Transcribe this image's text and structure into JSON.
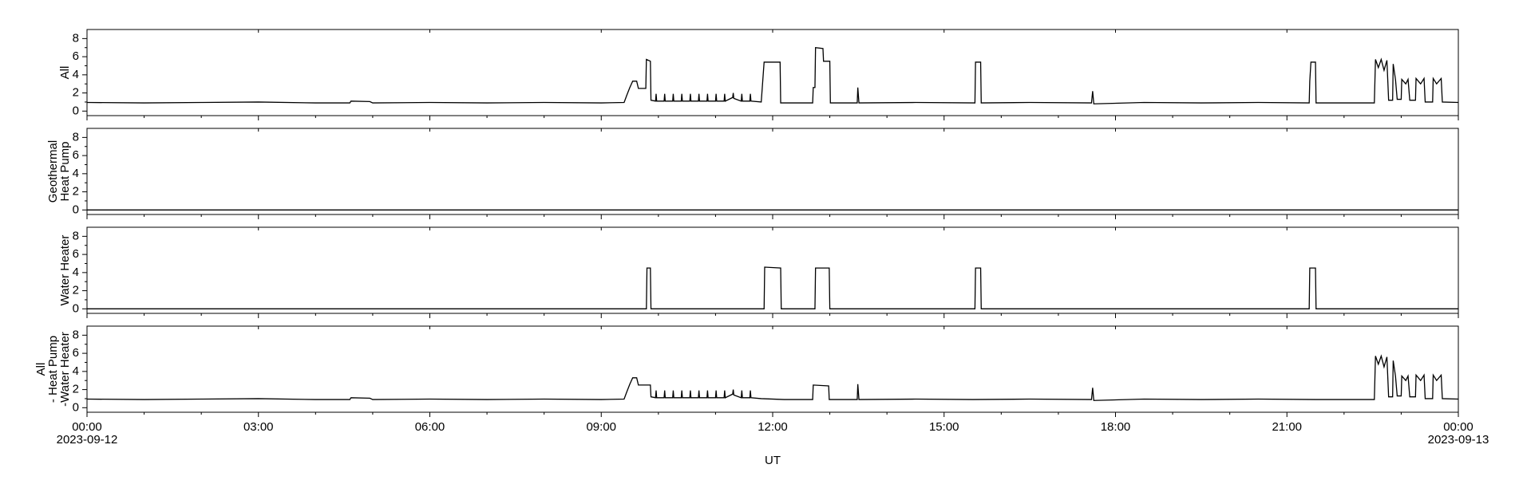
{
  "chart_data": [
    {
      "type": "line",
      "ylabel": [
        "All"
      ],
      "color": "#000000",
      "ylim": [
        -0.5,
        9
      ],
      "yticks": [
        0,
        2,
        4,
        6,
        8
      ],
      "yticks_minor": [
        1,
        3,
        5,
        7
      ],
      "x": [
        0,
        1.0,
        2.0,
        3.0,
        4.0,
        4.6,
        4.62,
        4.95,
        5.0,
        6.0,
        7.0,
        8.0,
        9.0,
        9.4,
        9.45,
        9.5,
        9.55,
        9.62,
        9.65,
        9.78,
        9.79,
        9.86,
        9.87,
        9.95,
        9.96,
        9.97,
        10.1,
        10.11,
        10.12,
        10.25,
        10.26,
        10.27,
        10.4,
        10.41,
        10.42,
        10.55,
        10.56,
        10.57,
        10.7,
        10.71,
        10.72,
        10.85,
        10.86,
        10.87,
        11.0,
        11.01,
        11.02,
        11.15,
        11.16,
        11.17,
        11.3,
        11.31,
        11.32,
        11.45,
        11.46,
        11.47,
        11.6,
        11.61,
        11.62,
        11.8,
        11.85,
        12.13,
        12.14,
        12.7,
        12.71,
        12.74,
        12.75,
        12.88,
        12.89,
        13.0,
        13.01,
        13.48,
        13.49,
        13.51,
        14.5,
        15.54,
        15.55,
        15.64,
        15.65,
        16.5,
        17.58,
        17.6,
        17.62,
        18.5,
        19.5,
        20.5,
        21.39,
        21.4,
        21.42,
        21.5,
        21.51,
        22.53,
        22.55,
        22.6,
        22.65,
        22.7,
        22.75,
        22.78,
        22.85,
        22.86,
        22.9,
        22.93,
        23.0,
        23.01,
        23.08,
        23.12,
        23.15,
        23.25,
        23.26,
        23.34,
        23.4,
        23.42,
        23.55,
        23.56,
        23.62,
        23.7,
        23.72,
        24.0
      ],
      "values": [
        0.95,
        0.9,
        0.95,
        1.0,
        0.9,
        0.9,
        1.1,
        1.05,
        0.9,
        0.95,
        0.9,
        0.95,
        0.9,
        0.95,
        1.8,
        2.6,
        3.3,
        3.3,
        2.5,
        2.5,
        5.7,
        5.5,
        1.2,
        1.1,
        1.9,
        1.1,
        1.1,
        1.9,
        1.1,
        1.1,
        1.9,
        1.1,
        1.1,
        1.9,
        1.1,
        1.1,
        1.9,
        1.1,
        1.1,
        1.9,
        1.1,
        1.1,
        1.9,
        1.1,
        1.1,
        1.9,
        1.1,
        1.1,
        1.9,
        1.1,
        1.5,
        2.0,
        1.4,
        1.1,
        1.9,
        1.1,
        1.1,
        1.9,
        1.1,
        1.0,
        5.4,
        5.4,
        0.9,
        0.9,
        2.6,
        2.6,
        7.0,
        6.9,
        5.5,
        5.5,
        0.9,
        0.9,
        2.6,
        0.9,
        0.95,
        0.9,
        5.4,
        5.4,
        0.9,
        0.95,
        0.9,
        2.2,
        0.8,
        0.95,
        0.9,
        0.95,
        0.9,
        3.3,
        5.4,
        5.4,
        0.9,
        0.9,
        5.7,
        4.8,
        5.7,
        4.5,
        5.6,
        1.2,
        1.2,
        5.2,
        3.5,
        1.3,
        1.3,
        3.5,
        3.0,
        3.5,
        1.2,
        1.2,
        3.6,
        3.0,
        3.6,
        1.0,
        1.0,
        3.6,
        3.0,
        3.6,
        1.0,
        0.95
      ]
    },
    {
      "type": "line",
      "ylabel": [
        "Geothermal",
        "Heat Pump"
      ],
      "color": "#000000",
      "ylim": [
        -0.5,
        9
      ],
      "yticks": [
        0,
        2,
        4,
        6,
        8
      ],
      "yticks_minor": [
        1,
        3,
        5,
        7
      ],
      "x": [
        0,
        24
      ],
      "values": [
        0,
        0
      ]
    },
    {
      "type": "line",
      "ylabel": [
        "Water Heater"
      ],
      "color": "#000000",
      "ylim": [
        -0.5,
        9
      ],
      "yticks": [
        0,
        2,
        4,
        6,
        8
      ],
      "yticks_minor": [
        1,
        3,
        5,
        7
      ],
      "x": [
        0,
        9.79,
        9.8,
        9.86,
        9.87,
        11.85,
        11.86,
        12.14,
        12.15,
        12.74,
        12.75,
        12.99,
        13.0,
        15.54,
        15.55,
        15.64,
        15.65,
        21.39,
        21.4,
        21.5,
        21.51,
        24
      ],
      "values": [
        0,
        0,
        4.5,
        4.5,
        0,
        0,
        4.6,
        4.5,
        0,
        0,
        4.5,
        4.5,
        0,
        0,
        4.5,
        4.5,
        0,
        0,
        4.5,
        4.5,
        0,
        0
      ]
    },
    {
      "type": "line",
      "ylabel": [
        "All",
        "- Heat Pump",
        "-Water Heater"
      ],
      "color": "#000000",
      "ylim": [
        -0.5,
        9
      ],
      "yticks": [
        0,
        2,
        4,
        6,
        8
      ],
      "yticks_minor": [
        1,
        3,
        5,
        7
      ],
      "xlim": [
        0,
        24
      ],
      "xticks": [
        {
          "value": 0,
          "label": "00:00"
        },
        {
          "value": 3,
          "label": "03:00"
        },
        {
          "value": 6,
          "label": "06:00"
        },
        {
          "value": 9,
          "label": "09:00"
        },
        {
          "value": 12,
          "label": "12:00"
        },
        {
          "value": 15,
          "label": "15:00"
        },
        {
          "value": 18,
          "label": "18:00"
        },
        {
          "value": 21,
          "label": "21:00"
        },
        {
          "value": 24,
          "label": "00:00"
        }
      ],
      "xticks_minor": [
        1,
        2,
        4,
        5,
        7,
        8,
        10,
        11,
        13,
        14,
        16,
        17,
        19,
        20,
        22,
        23
      ],
      "xtick_dates": [
        {
          "value": 0,
          "label": "2023-09-12"
        },
        {
          "value": 24,
          "label": "2023-09-13"
        }
      ],
      "xlabel": "UT",
      "x": [
        0,
        1.0,
        2.0,
        3.0,
        4.0,
        4.6,
        4.62,
        4.95,
        5.0,
        6.0,
        7.0,
        8.0,
        9.0,
        9.4,
        9.45,
        9.5,
        9.55,
        9.62,
        9.65,
        9.86,
        9.87,
        9.95,
        9.96,
        9.97,
        10.1,
        10.11,
        10.12,
        10.25,
        10.26,
        10.27,
        10.4,
        10.41,
        10.42,
        10.55,
        10.56,
        10.57,
        10.7,
        10.71,
        10.72,
        10.85,
        10.86,
        10.87,
        11.0,
        11.01,
        11.02,
        11.15,
        11.16,
        11.17,
        11.3,
        11.31,
        11.32,
        11.45,
        11.46,
        11.47,
        11.6,
        11.61,
        11.62,
        11.8,
        12.2,
        12.7,
        12.71,
        12.98,
        12.99,
        13.48,
        13.49,
        13.51,
        14.5,
        15.5,
        16.5,
        17.58,
        17.6,
        17.62,
        18.5,
        19.5,
        20.5,
        21.5,
        22.53,
        22.55,
        22.6,
        22.65,
        22.7,
        22.75,
        22.78,
        22.85,
        22.86,
        22.9,
        22.93,
        23.0,
        23.01,
        23.08,
        23.12,
        23.15,
        23.25,
        23.26,
        23.34,
        23.4,
        23.42,
        23.55,
        23.56,
        23.62,
        23.7,
        23.72,
        24.0
      ],
      "values": [
        0.95,
        0.9,
        0.95,
        1.0,
        0.9,
        0.9,
        1.1,
        1.05,
        0.9,
        0.95,
        0.9,
        0.95,
        0.9,
        0.95,
        1.8,
        2.6,
        3.3,
        3.3,
        2.5,
        2.5,
        1.2,
        1.1,
        1.9,
        1.1,
        1.1,
        1.9,
        1.1,
        1.1,
        1.9,
        1.1,
        1.1,
        1.9,
        1.1,
        1.1,
        1.9,
        1.1,
        1.1,
        1.9,
        1.1,
        1.1,
        1.9,
        1.1,
        1.1,
        1.9,
        1.1,
        1.1,
        1.9,
        1.1,
        1.5,
        2.0,
        1.4,
        1.1,
        1.9,
        1.1,
        1.1,
        1.9,
        1.1,
        1.0,
        0.9,
        0.9,
        2.5,
        2.4,
        0.9,
        0.9,
        2.6,
        0.9,
        0.95,
        0.9,
        0.95,
        0.9,
        2.2,
        0.8,
        0.95,
        0.9,
        0.95,
        0.9,
        0.9,
        5.7,
        4.8,
        5.7,
        4.5,
        5.6,
        1.2,
        1.2,
        5.2,
        3.5,
        1.3,
        1.3,
        3.5,
        3.0,
        3.5,
        1.2,
        1.2,
        3.6,
        3.0,
        3.6,
        1.0,
        1.0,
        3.6,
        3.0,
        3.6,
        1.0,
        0.95
      ]
    }
  ]
}
